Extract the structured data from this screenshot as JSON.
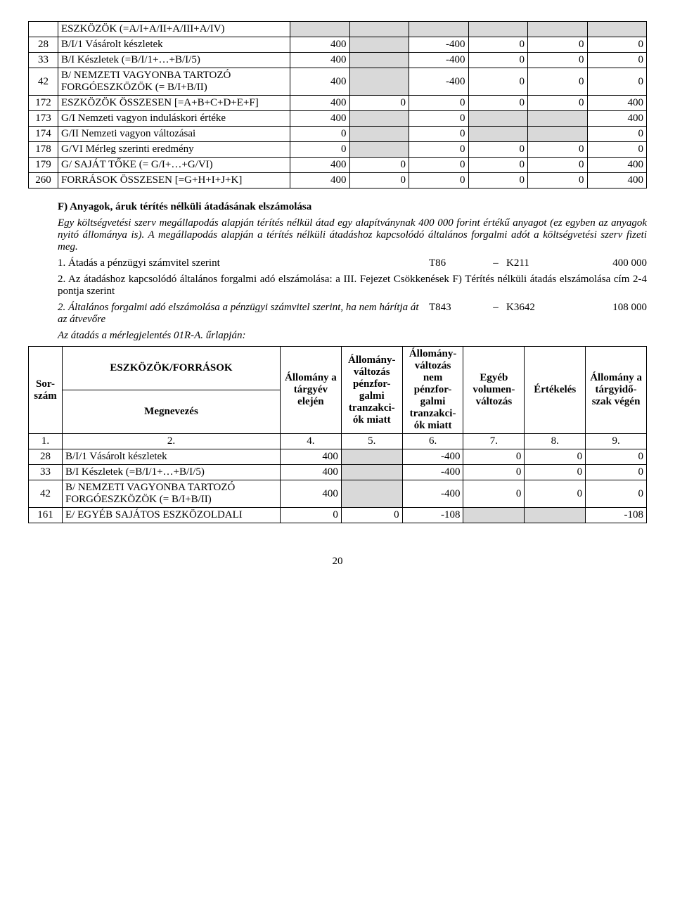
{
  "table1": {
    "rows": [
      {
        "n": "",
        "name": "ESZKÖZÖK (=A/I+A/II+A/III+A/IV)",
        "c3": "",
        "c4": "",
        "c5": "",
        "c6": "",
        "c7": "",
        "c8": "",
        "shadeCols": [
          3,
          4,
          5,
          6,
          7,
          8
        ]
      },
      {
        "n": "28",
        "name": "B/I/1 Vásárolt készletek",
        "c3": "400",
        "c4": "",
        "c5": "-400",
        "c6": "0",
        "c7": "0",
        "c8": "0",
        "shadeCols": [
          4
        ]
      },
      {
        "n": "33",
        "name": "B/I Készletek (=B/I/1+…+B/I/5)",
        "c3": "400",
        "c4": "",
        "c5": "-400",
        "c6": "0",
        "c7": "0",
        "c8": "0",
        "shadeCols": [
          4
        ]
      },
      {
        "n": "42",
        "name": "B/ NEMZETI VAGYONBA TARTOZÓ FORGÓESZKÖZÖK (= B/I+B/II)",
        "c3": "400",
        "c4": "",
        "c5": "-400",
        "c6": "0",
        "c7": "0",
        "c8": "0",
        "shadeCols": [
          4
        ]
      },
      {
        "n": "172",
        "name": "ESZKÖZÖK ÖSSZESEN [=A+B+C+D+E+F]",
        "c3": "400",
        "c4": "0",
        "c5": "0",
        "c6": "0",
        "c7": "0",
        "c8": "400",
        "shadeCols": []
      },
      {
        "n": "173",
        "name": "G/I Nemzeti vagyon induláskori értéke",
        "c3": "400",
        "c4": "",
        "c5": "0",
        "c6": "",
        "c7": "",
        "c8": "400",
        "shadeCols": [
          4,
          6,
          7
        ]
      },
      {
        "n": "174",
        "name": "G/II Nemzeti vagyon változásai",
        "c3": "0",
        "c4": "",
        "c5": "0",
        "c6": "",
        "c7": "",
        "c8": "0",
        "shadeCols": [
          4,
          6,
          7
        ]
      },
      {
        "n": "178",
        "name": "G/VI Mérleg szerinti eredmény",
        "c3": "0",
        "c4": "",
        "c5": "0",
        "c6": "0",
        "c7": "0",
        "c8": "0",
        "shadeCols": [
          4
        ]
      },
      {
        "n": "179",
        "name": "G/ SAJÁT TŐKE (= G/I+…+G/VI)",
        "c3": "400",
        "c4": "0",
        "c5": "0",
        "c6": "0",
        "c7": "0",
        "c8": "400",
        "shadeCols": []
      },
      {
        "n": "260",
        "name": "FORRÁSOK ÖSSZESEN [=G+H+I+J+K]",
        "c3": "400",
        "c4": "0",
        "c5": "0",
        "c6": "0",
        "c7": "0",
        "c8": "400",
        "shadeCols": []
      }
    ]
  },
  "sectionF": {
    "heading": "F) Anyagok, áruk térítés nélküli átadásának elszámolása",
    "para1": "Egy költségvetési szerv megállapodás alapján térítés nélkül átad egy alapítványnak 400 000 forint értékű anyagot (ez egyben az anyagok nyitó állománya is). A megállapodás alapján a térítés nélküli átadáshoz kapcsolódó általános forgalmi adót a költségvetési szerv fizeti meg.",
    "line1": {
      "num": "1.",
      "text": "Átadás a pénzügyi számvitel szerint",
      "t": "T86",
      "dash": "–",
      "k": "K211",
      "amt": "400 000"
    },
    "para2a": "2. Az átadáshoz kapcsolódó általános forgalmi adó elszámolása: a III. Fejezet Csökkenések F) Térítés nélküli átadás elszámolása cím 2-4 pontja szerint",
    "line2": {
      "text": "2. Általános forgalmi adó elszámolása a pénzügyi számvitel szerint, ha nem hárítja át az átvevőre",
      "t": "T843",
      "dash": "–",
      "k": "K3642",
      "amt": "108 000"
    },
    "para3": "Az átadás a mérlegjelentés 01R-A. űrlapján:"
  },
  "table2": {
    "head": {
      "sor": "Sor-szám",
      "ef": "ESZKÖZÖK/FORRÁSOK",
      "meg": "Megnevezés",
      "c4h": "Állomány a tárgyév elején",
      "c5h": "Állomány-változás pénzfor-galmi tranzakci-ók miatt",
      "c6h": "Állomány-változás nem pénzfor-galmi tranzakci-ók miatt",
      "c7h": "Egyéb volumen-változás",
      "c8h": "Értékelés",
      "c9h": "Állomány a tárgyidő-szak végén",
      "n1": "1.",
      "n2": "2.",
      "n4": "4.",
      "n5": "5.",
      "n6": "6.",
      "n7": "7.",
      "n8": "8.",
      "n9": "9."
    },
    "rows": [
      {
        "n": "28",
        "name": "B/I/1 Vásárolt készletek",
        "c4": "400",
        "c5": "",
        "c6": "-400",
        "c7": "0",
        "c8": "0",
        "c9": "0"
      },
      {
        "n": "33",
        "name": "B/I Készletek (=B/I/1+…+B/I/5)",
        "c4": "400",
        "c5": "",
        "c6": "-400",
        "c7": "0",
        "c8": "0",
        "c9": "0"
      },
      {
        "n": "42",
        "name": "B/ NEMZETI VAGYONBA TARTOZÓ FORGÓESZKÖZÖK (= B/I+B/II)",
        "c4": "400",
        "c5": "",
        "c6": "-400",
        "c7": "0",
        "c8": "0",
        "c9": "0"
      },
      {
        "n": "161",
        "name": "E/ EGYÉB SAJÁTOS ESZKÖZOLDALI",
        "c4": "0",
        "c5": "0",
        "c6": "-108",
        "c7": "",
        "c8": "",
        "c9": "-108"
      }
    ]
  },
  "pageNumber": "20"
}
